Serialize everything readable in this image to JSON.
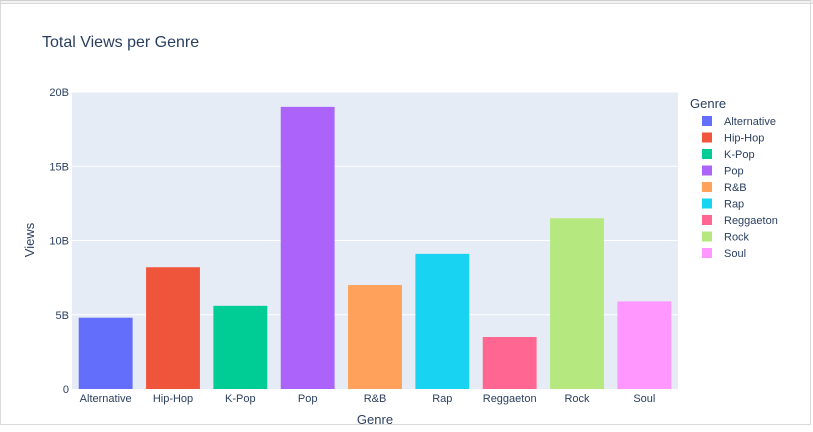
{
  "chart_data": {
    "type": "bar",
    "title": "Total Views per Genre",
    "xlabel": "Genre",
    "ylabel": "Views",
    "ylim": [
      0,
      20000000000
    ],
    "yticks": [
      {
        "value": 0,
        "label": "0"
      },
      {
        "value": 5000000000,
        "label": "5B"
      },
      {
        "value": 10000000000,
        "label": "10B"
      },
      {
        "value": 15000000000,
        "label": "15B"
      },
      {
        "value": 20000000000,
        "label": "20B"
      }
    ],
    "categories": [
      "Alternative",
      "Hip-Hop",
      "K-Pop",
      "Pop",
      "R&B",
      "Rap",
      "Reggaeton",
      "Rock",
      "Soul"
    ],
    "values": [
      4800000000,
      8200000000,
      5600000000,
      19000000000,
      7000000000,
      9100000000,
      3500000000,
      11500000000,
      5900000000
    ],
    "colors": [
      "#636efa",
      "#ef553b",
      "#00cc96",
      "#ab63fa",
      "#ffa15a",
      "#19d3f3",
      "#ff6692",
      "#b6e880",
      "#ff97ff"
    ],
    "legend": {
      "title": "Genre",
      "position": "right",
      "entries": [
        "Alternative",
        "Hip-Hop",
        "K-Pop",
        "Pop",
        "R&B",
        "Rap",
        "Reggaeton",
        "Rock",
        "Soul"
      ]
    },
    "grid": true,
    "plot_bg": "#e5ecf6",
    "grid_color": "#ffffff"
  }
}
